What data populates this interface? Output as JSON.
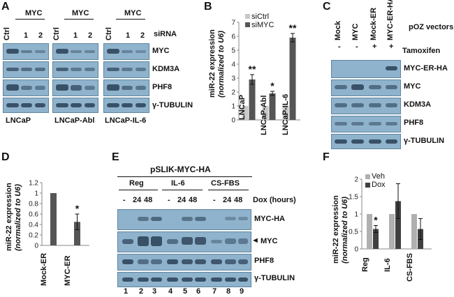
{
  "panels": {
    "A": {
      "label": "A",
      "groups": [
        "MYC",
        "MYC",
        "MYC"
      ],
      "lane_labels": [
        "Ctrl",
        "1",
        "2"
      ],
      "treatment_label": "siRNA",
      "row_labels": [
        "MYC",
        "KDM3A",
        "PHF8",
        "γ-TUBULIN"
      ],
      "cell_lines": [
        "LNCaP",
        "LNCaP-Abl",
        "LNCaP-IL-6"
      ]
    },
    "B": {
      "label": "B",
      "ylabel": "miR-22 expression",
      "ylabel2": "(normalized to U6)",
      "legend": [
        "siCtrl",
        "siMYC"
      ]
    },
    "C": {
      "label": "C",
      "lane_labels": [
        "Mock",
        "MYC",
        "Mock-ER",
        "MYC-ER-HA"
      ],
      "vector_label": "pOZ vectors",
      "tamoxifen": [
        "-",
        "-",
        "+",
        "+"
      ],
      "tamoxifen_label": "Tamoxifen",
      "row_labels": [
        "MYC-ER-HA",
        "MYC",
        "KDM3A",
        "PHF8",
        "γ-TUBULIN"
      ]
    },
    "D": {
      "label": "D",
      "ylabel": "miR-22 expression",
      "ylabel2": "(normalized to U6)"
    },
    "E": {
      "label": "E",
      "construct": "pSLIK-MYC-HA",
      "groups": [
        "Reg",
        "IL-6",
        "CS-FBS"
      ],
      "dox_sets": [
        [
          "-",
          "24",
          "48"
        ],
        [
          "-",
          "24",
          "48"
        ],
        [
          "-",
          "24",
          "48"
        ]
      ],
      "dox_label": "Dox (hours)",
      "row_labels": [
        "MYC-HA",
        "MYC",
        "PHF8",
        "γ-TUBULIN"
      ],
      "arrow": "◄",
      "lane_numbers": [
        "1",
        "2",
        "3",
        "4",
        "5",
        "6",
        "7",
        "8",
        "9"
      ]
    },
    "F": {
      "label": "F",
      "ylabel": "miR-22 expression",
      "ylabel2": "(normalized to U6)",
      "legend": [
        "Veh",
        "Dox"
      ]
    }
  },
  "chart_data": [
    {
      "id": "B",
      "type": "bar",
      "categories": [
        "LNCaP",
        "LNCaP-Abl",
        "LNCaP-IL-6"
      ],
      "series": [
        {
          "name": "siCtrl",
          "values": [
            1,
            1,
            1
          ],
          "color": "#c8c8c8"
        },
        {
          "name": "siMYC",
          "values": [
            2.9,
            1.9,
            5.9
          ],
          "errors": [
            0.35,
            0.15,
            0.3
          ],
          "color": "#555555"
        }
      ],
      "annotations": [
        "**",
        "*",
        "**"
      ],
      "ylim": [
        0,
        7
      ],
      "yticks": [
        "0",
        "1",
        "2",
        "3",
        "4",
        "5",
        "6",
        "7"
      ]
    },
    {
      "id": "D",
      "type": "bar",
      "categories": [
        "Mock-ER",
        "MYC-ER"
      ],
      "values": [
        1.0,
        0.45
      ],
      "errors": [
        0.0,
        0.15
      ],
      "annotations": [
        "",
        "*"
      ],
      "color": "#555555",
      "ylim": [
        0,
        1.2
      ],
      "yticks": [
        "0",
        "0.2",
        "0.4",
        "0.6",
        "0.8",
        "1",
        "1.2"
      ]
    },
    {
      "id": "F",
      "type": "bar",
      "categories": [
        "Reg",
        "IL-6",
        "CS-FBS"
      ],
      "series": [
        {
          "name": "Veh",
          "values": [
            1,
            1,
            1
          ],
          "errors": [
            0,
            0,
            0
          ],
          "color": "#b0b0b0"
        },
        {
          "name": "Dox",
          "values": [
            0.57,
            1.37,
            0.57
          ],
          "errors": [
            0.1,
            0.5,
            0.3
          ],
          "color": "#404040"
        }
      ],
      "annotations": [
        "*",
        "",
        ""
      ],
      "ylim": [
        0,
        2
      ],
      "yticks": [
        "0",
        "0.5",
        "1",
        "1.5",
        "2"
      ]
    }
  ]
}
